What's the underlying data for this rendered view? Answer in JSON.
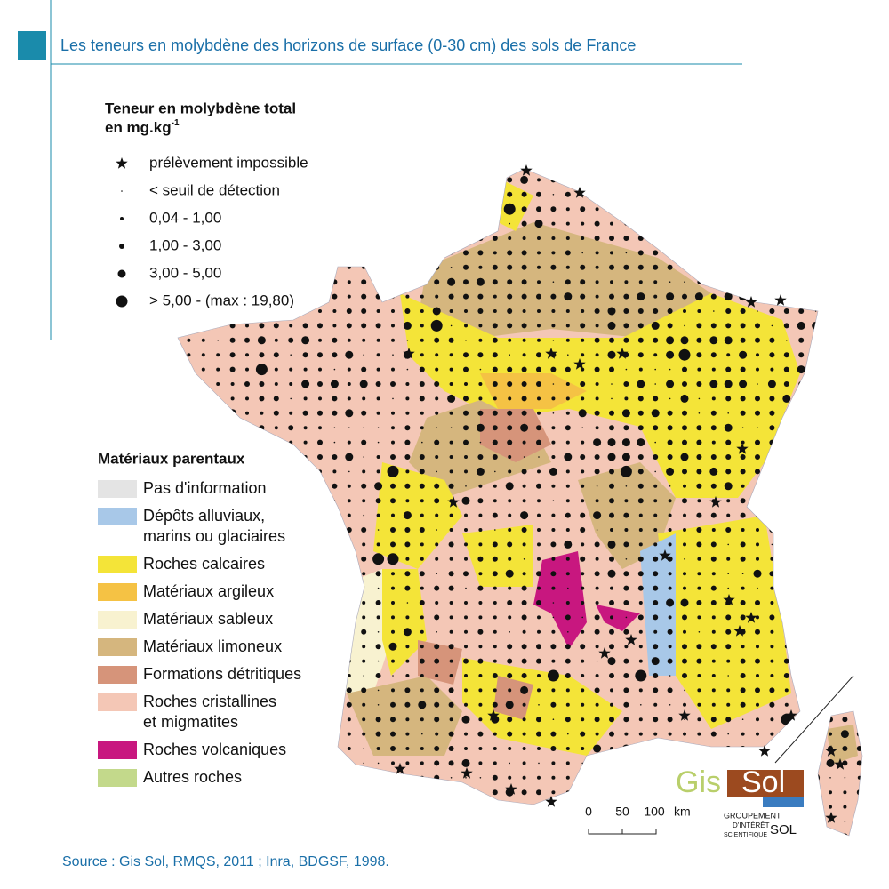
{
  "header": {
    "title": "Les teneurs en molybdène des horizons de surface (0-30 cm) des sols de France"
  },
  "legend_molybdenum": {
    "title_lines": [
      "Teneur en molybdène total",
      "en mg.kg"
    ],
    "title_superscript": "-1",
    "items": [
      "prélèvement impossible",
      "< seuil de détection",
      "0,04 - 1,00",
      "1,00 - 3,00",
      "3,00 - 5,00",
      "> 5,00 - (max : 19,80)"
    ]
  },
  "legend_materials": {
    "title": "Matériaux parentaux",
    "items": [
      {
        "lines": [
          "Pas d'information"
        ],
        "color": "#e4e4e4"
      },
      {
        "lines": [
          "Dépôts alluviaux,",
          "marins ou glaciaires"
        ],
        "color": "#a8c8e8"
      },
      {
        "lines": [
          "Roches calcaires"
        ],
        "color": "#f4e438"
      },
      {
        "lines": [
          "Matériaux argileux"
        ],
        "color": "#f5c244"
      },
      {
        "lines": [
          "Matériaux sableux"
        ],
        "color": "#f8f2d0"
      },
      {
        "lines": [
          "Matériaux limoneux"
        ],
        "color": "#d5b67e"
      },
      {
        "lines": [
          "Formations détritiques"
        ],
        "color": "#d6947a"
      },
      {
        "lines": [
          "Roches cristallines",
          "et migmatites"
        ],
        "color": "#f4c7b6"
      },
      {
        "lines": [
          "Roches volcaniques"
        ],
        "color": "#c8177f"
      },
      {
        "lines": [
          "Autres roches"
        ],
        "color": "#c3d98b"
      }
    ]
  },
  "scale": {
    "labels": [
      "0",
      "50",
      "100"
    ],
    "unit": "km"
  },
  "logo": {
    "word1": "Gis",
    "word2": "Sol",
    "lines": [
      "GROUPEMENT",
      "D'INTÉRÊT",
      "SCIENTIFIQUE"
    ],
    "tail": "SOL"
  },
  "footer": {
    "source": "Source : Gis Sol, RMQS, 2011 ; Inra, BDGSF, 1998."
  }
}
